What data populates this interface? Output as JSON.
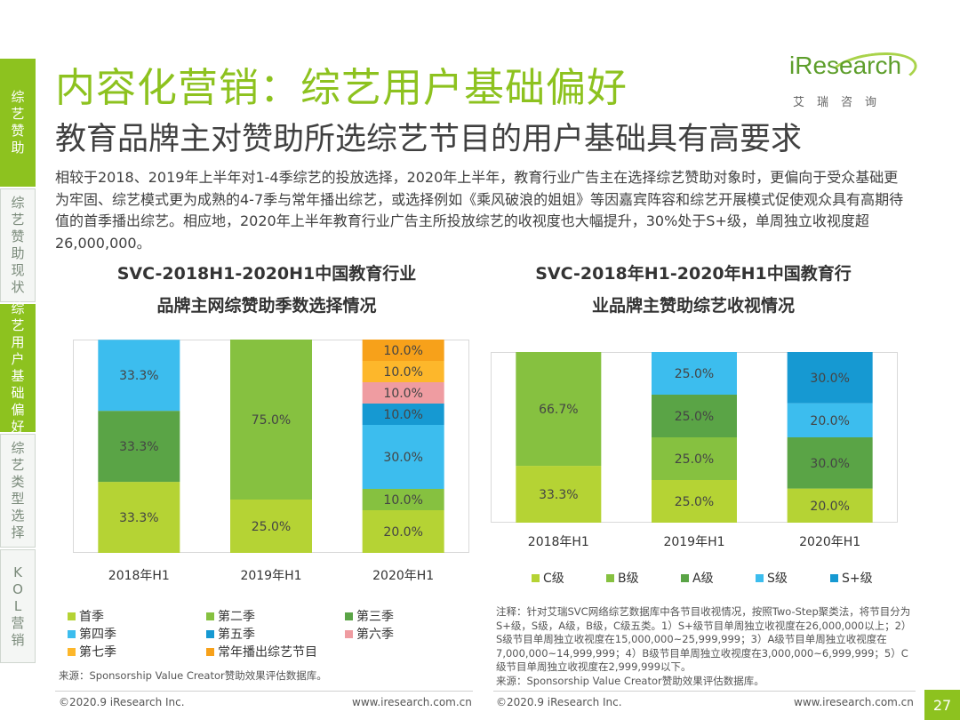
{
  "sidebar": [
    {
      "label": "综艺赞助",
      "active": true
    },
    {
      "label": "综艺赞助现状",
      "active": false
    },
    {
      "label": "综艺用户基础偏好",
      "active": true
    },
    {
      "label": "综艺类型选择",
      "active": false
    },
    {
      "label": "KOL营销",
      "active": false
    }
  ],
  "header": {
    "title": "内容化营销：综艺用户基础偏好",
    "subtitle": "教育品牌主对赞助所选综艺节目的用户基础具有高要求",
    "logo_main": "iResearch",
    "logo_sub": "艾瑞咨询"
  },
  "paragraph": "相较于2018、2019年上半年对1-4季综艺的投放选择，2020年上半年，教育行业广告主在选择综艺赞助对象时，更偏向于受众基础更为牢固、综艺模式更为成熟的4-7季与常年播出综艺，或选择例如《乘风破浪的姐姐》等因嘉宾阵容和综艺开展模式促使观众具有高期待值的首季播出综艺。相应地，2020年上半年教育行业广告主所投放综艺的收视度也大幅提升，30%处于S+级，单周独立收视度超26,000,000。",
  "chart1_title": [
    "SVC-2018H1-2020H1中国教育行业",
    "品牌主网综赞助季数选择情况"
  ],
  "chart2_title": [
    "SVC-2018年H1-2020年H1中国教育行",
    "业品牌主赞助综艺收视情况"
  ],
  "legend1": [
    {
      "label": "首季",
      "color": "#b5d334"
    },
    {
      "label": "第二季",
      "color": "#86c140"
    },
    {
      "label": "第三季",
      "color": "#5aa446"
    },
    {
      "label": "第四季",
      "color": "#3cbdee"
    },
    {
      "label": "第五季",
      "color": "#1699d2"
    },
    {
      "label": "第六季",
      "color": "#ef9ca1"
    },
    {
      "label": "第七季",
      "color": "#fdb72b"
    },
    {
      "label": "常年播出综艺节目",
      "color": "#f7a11a"
    }
  ],
  "legend2": [
    {
      "label": "C级",
      "color": "#b5d334"
    },
    {
      "label": "B级",
      "color": "#86c140"
    },
    {
      "label": "A级",
      "color": "#5aa446"
    },
    {
      "label": "S级",
      "color": "#3cbdee"
    },
    {
      "label": "S+级",
      "color": "#1699d2"
    }
  ],
  "chart_data": [
    {
      "type": "bar",
      "stacked": true,
      "title": "SVC-2018H1-2020H1中国教育行业品牌主网综赞助季数选择情况",
      "categories": [
        "2018年H1",
        "2019年H1",
        "2020年H1"
      ],
      "ylim": [
        0,
        100
      ],
      "unit": "%",
      "series": [
        {
          "name": "首季",
          "values": [
            33.3,
            25.0,
            20.0
          ],
          "color": "#b5d334"
        },
        {
          "name": "第二季",
          "values": [
            0,
            75.0,
            10.0
          ],
          "color": "#86c140"
        },
        {
          "name": "第三季",
          "values": [
            33.3,
            0,
            0
          ],
          "color": "#5aa446"
        },
        {
          "name": "第四季",
          "values": [
            33.3,
            0,
            30.0
          ],
          "color": "#3cbdee"
        },
        {
          "name": "第五季",
          "values": [
            0,
            0,
            10.0
          ],
          "color": "#1699d2"
        },
        {
          "name": "第六季",
          "values": [
            0,
            0,
            10.0
          ],
          "color": "#ef9ca1"
        },
        {
          "name": "第七季",
          "values": [
            0,
            0,
            10.0
          ],
          "color": "#fdb72b"
        },
        {
          "name": "常年播出综艺节目",
          "values": [
            0,
            0,
            10.0
          ],
          "color": "#f7a11a"
        }
      ],
      "labels": [
        [
          "33.3%",
          "",
          "33.3%",
          "33.3%",
          "",
          "",
          "",
          ""
        ],
        [
          "25.0%",
          "75.0%",
          "",
          "",
          "",
          "",
          "",
          ""
        ],
        [
          "20.0%",
          "10.0%",
          "",
          "30.0%",
          "10.0%",
          "10.0%",
          "10.0%",
          "10.0%"
        ]
      ]
    },
    {
      "type": "bar",
      "stacked": true,
      "title": "SVC-2018年H1-2020年H1中国教育行业品牌主赞助综艺收视情况",
      "categories": [
        "2018年H1",
        "2019年H1",
        "2020年H1"
      ],
      "ylim": [
        0,
        100
      ],
      "unit": "%",
      "series": [
        {
          "name": "C级",
          "values": [
            33.3,
            25.0,
            20.0
          ],
          "color": "#b5d334"
        },
        {
          "name": "B级",
          "values": [
            66.7,
            25.0,
            0
          ],
          "color": "#86c140"
        },
        {
          "name": "A级",
          "values": [
            0,
            25.0,
            30.0
          ],
          "color": "#5aa446"
        },
        {
          "name": "S级",
          "values": [
            0,
            25.0,
            20.0
          ],
          "color": "#3cbdee"
        },
        {
          "name": "S+级",
          "values": [
            0,
            0,
            30.0
          ],
          "color": "#1699d2"
        }
      ],
      "labels": [
        [
          "33.3%",
          "66.7%",
          "",
          "",
          ""
        ],
        [
          "25.0%",
          "25.0%",
          "25.0%",
          "25.0%",
          ""
        ],
        [
          "20.0%",
          "",
          "30.0%",
          "20.0%",
          "30.0%"
        ]
      ]
    }
  ],
  "note": "注释：针对艾瑞SVC网络综艺数据库中各节目收视情况，按照Two-Step聚类法，将节目分为S+级，S级，A级，B级，C级五类。1）S+级节目单周独立收视度在26,000,000以上；2）S级节目单周独立收视度在15,000,000~25,999,999；3）A级节目单周独立收视度在7,000,000~14,999,999；4）B级节目单周独立收视度在3,000,000~6,999,999；5）C级节目单周独立收视度在2,999,999以下。",
  "source_left": "来源：Sponsorship Value Creator赞助效果评估数据库。",
  "source_right": "来源：Sponsorship Value Creator赞助效果评估数据库。",
  "footer": {
    "copy_left": "©2020.9 iResearch Inc.",
    "url_left": "www.iresearch.com.cn",
    "copy_right": "©2020.9 iResearch Inc.",
    "url_right": "www.iresearch.com.cn",
    "page": "27"
  }
}
